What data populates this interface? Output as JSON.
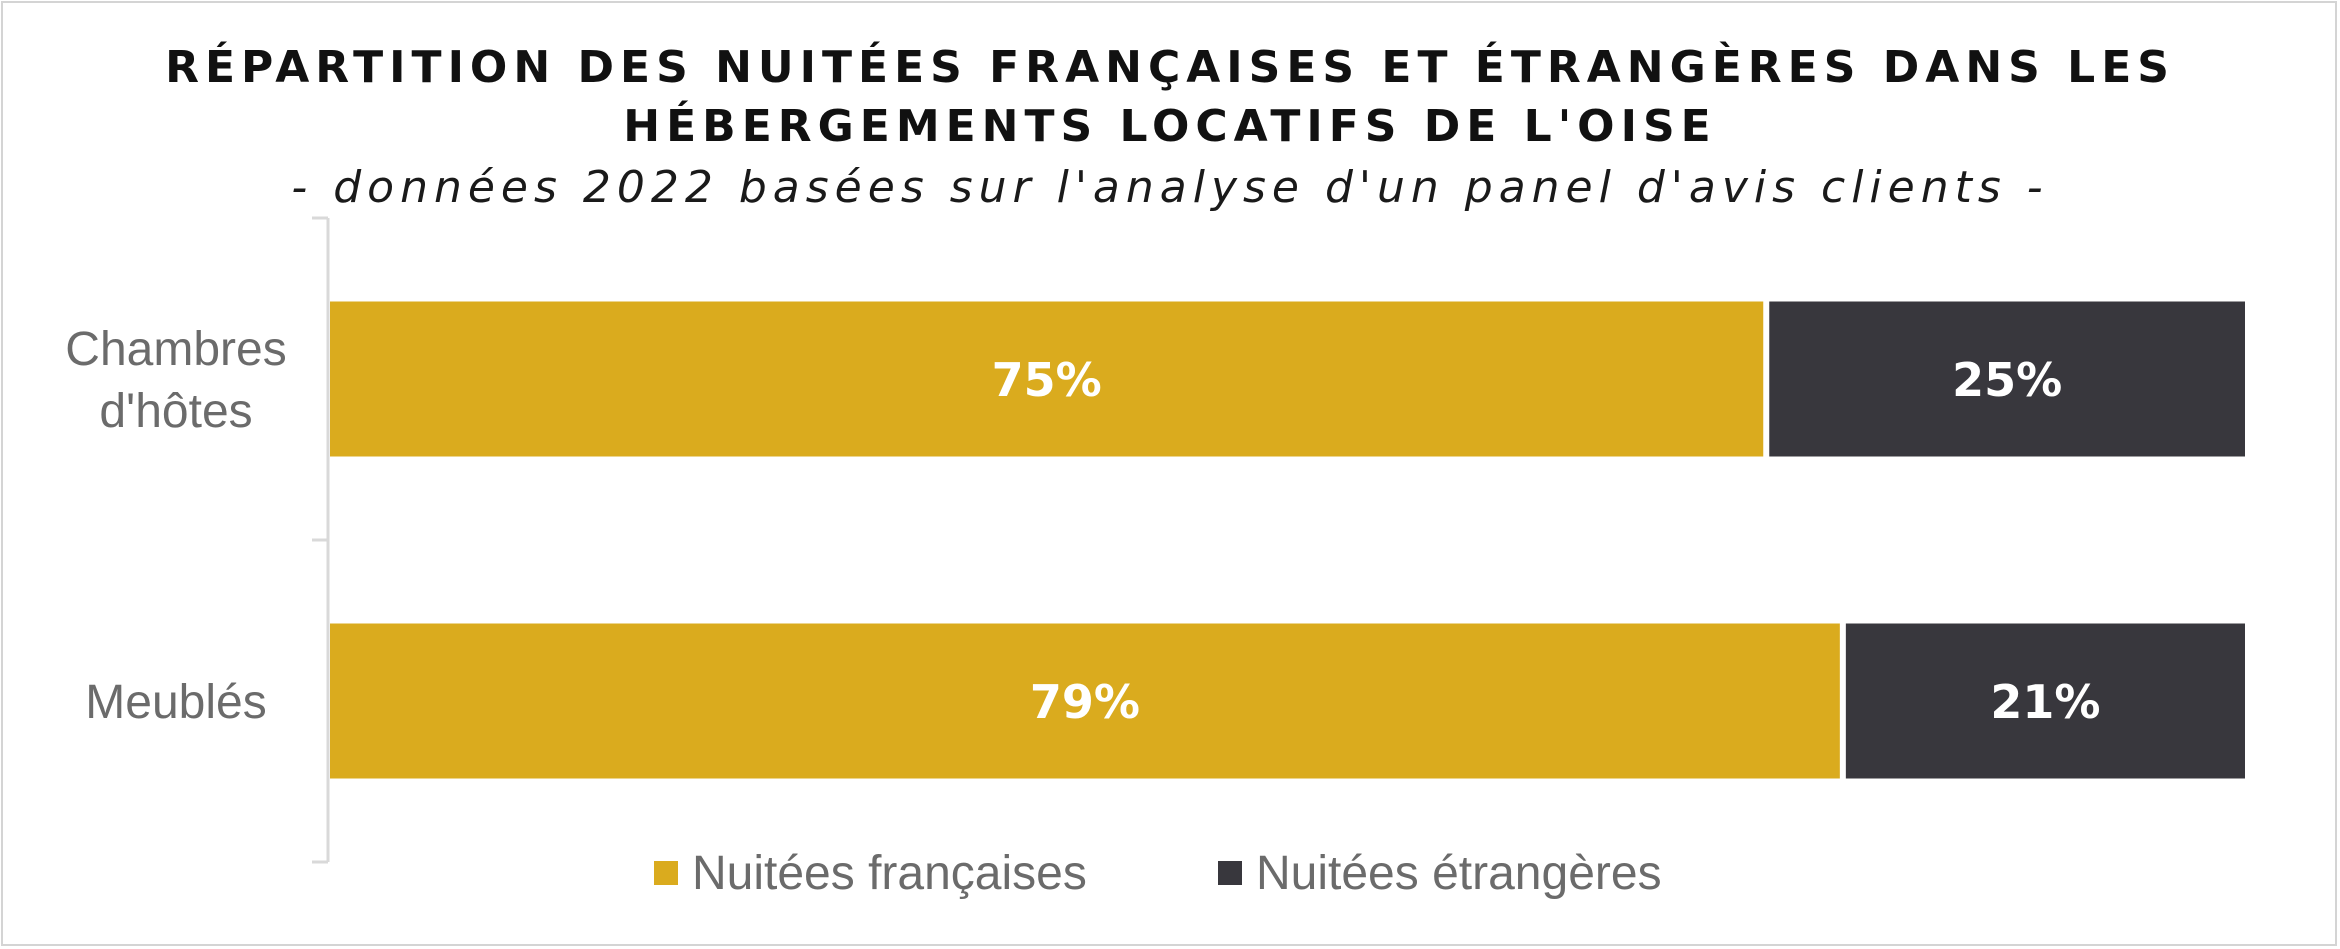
{
  "chart_data": {
    "type": "bar",
    "orientation": "horizontal",
    "stacked": true,
    "title": [
      "RÉPARTITION DES NUITÉES FRANÇAISES ET ÉTRANGÈRES DANS LES",
      "HÉBERGEMENTS LOCATIFS DE L'OISE"
    ],
    "subtitle": "- données 2022 basées sur l'analyse d'un panel d'avis clients -",
    "categories": [
      [
        "Chambres",
        "d'hôtes"
      ],
      [
        "Meublés"
      ]
    ],
    "series": [
      {
        "name": "Nuitées françaises",
        "values": [
          75,
          79
        ],
        "labels": [
          "75%",
          "79%"
        ],
        "color": "#DAAB1E"
      },
      {
        "name": "Nuitées étrangères",
        "values": [
          25,
          21
        ],
        "labels": [
          "25%",
          "21%"
        ],
        "color": "#38373D"
      }
    ],
    "xlim": [
      0,
      100
    ],
    "grid": false,
    "legend_position": "bottom"
  }
}
